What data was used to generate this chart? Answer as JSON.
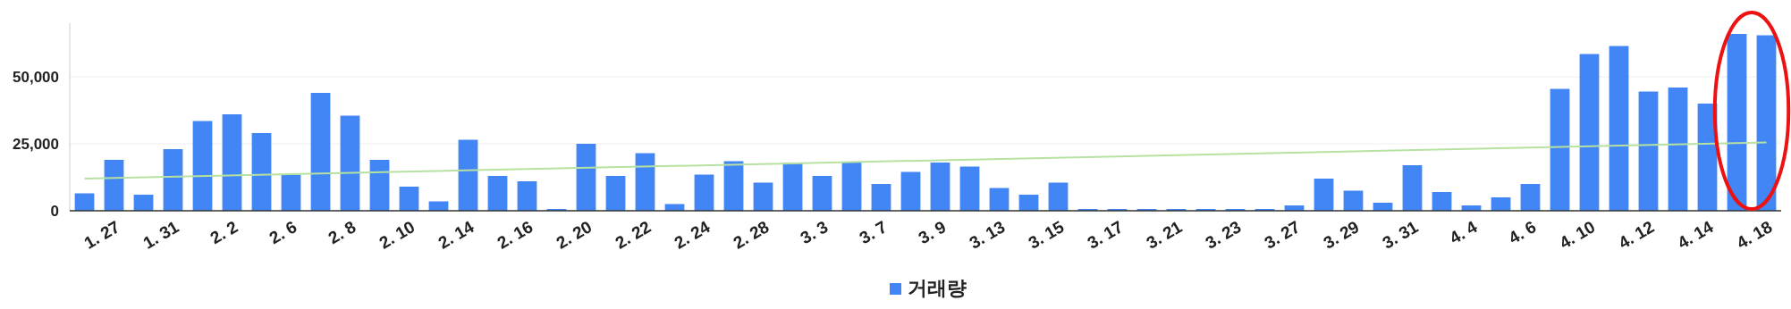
{
  "chart_data": {
    "type": "bar",
    "categories": [
      null,
      "1. 27",
      null,
      "1. 31",
      null,
      "2. 2",
      null,
      "2. 6",
      null,
      "2. 8",
      null,
      "2. 10",
      null,
      "2. 14",
      null,
      "2. 16",
      null,
      "2. 20",
      null,
      "2. 22",
      null,
      "2. 24",
      null,
      "2. 28",
      null,
      "3. 3",
      null,
      "3. 7",
      null,
      "3. 9",
      null,
      "3. 13",
      null,
      "3. 15",
      null,
      "3. 17",
      null,
      "3. 21",
      null,
      "3. 23",
      null,
      "3. 27",
      null,
      "3. 29",
      null,
      "3. 31",
      null,
      "4. 4",
      null,
      "4. 6",
      null,
      "4. 10",
      null,
      "4. 12",
      null,
      "4. 14",
      null,
      "4. 18"
    ],
    "series": [
      {
        "name": "거래량",
        "color": "#4285f4",
        "values": [
          6500,
          19000,
          6000,
          23000,
          33500,
          36000,
          29000,
          13500,
          44000,
          35500,
          19000,
          9000,
          3500,
          26500,
          13000,
          11000,
          0,
          25000,
          13000,
          21500,
          2500,
          13500,
          18500,
          10500,
          18000,
          13000,
          18000,
          10000,
          14500,
          18000,
          16500,
          8500,
          6000,
          10500,
          0,
          0,
          0,
          0,
          0,
          0,
          0,
          2000,
          12000,
          7500,
          3000,
          17000,
          7000,
          2000,
          5000,
          10000,
          45500,
          58500,
          61500,
          44500,
          46000,
          40000,
          66000,
          65500
        ]
      },
      {
        "type": "line",
        "color": "#b7e1a1",
        "values": [
          12000,
          null,
          null,
          null,
          null,
          null,
          null,
          null,
          null,
          null,
          null,
          null,
          null,
          null,
          null,
          null,
          null,
          null,
          null,
          null,
          null,
          null,
          null,
          null,
          null,
          null,
          null,
          null,
          null,
          null,
          null,
          null,
          null,
          null,
          null,
          null,
          null,
          null,
          null,
          null,
          null,
          null,
          null,
          null,
          null,
          null,
          null,
          null,
          null,
          null,
          null,
          null,
          null,
          null,
          null,
          null,
          null,
          25500
        ]
      }
    ],
    "yticks": [
      {
        "value": 0,
        "label": "0"
      },
      {
        "value": 25000,
        "label": "25,000"
      },
      {
        "value": 50000,
        "label": "50,000"
      }
    ],
    "ylim": [
      0,
      70000
    ],
    "grid": "y",
    "legend": "bottom"
  }
}
